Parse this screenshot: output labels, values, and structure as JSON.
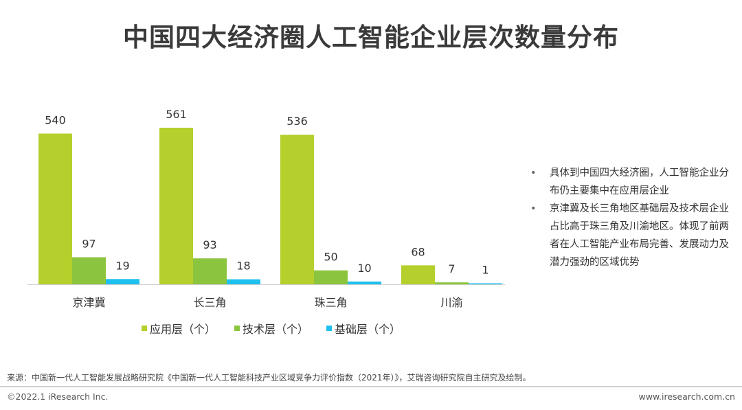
{
  "title": "中国四大经济圈人工智能企业层次数量分布",
  "chart_data": {
    "type": "bar",
    "categories": [
      "京津冀",
      "长三角",
      "珠三角",
      "川渝"
    ],
    "series": [
      {
        "name": "应用层（个）",
        "values": [
          540,
          561,
          536,
          68
        ],
        "color": "#b5cf2c"
      },
      {
        "name": "技术层（个）",
        "values": [
          97,
          93,
          50,
          7
        ],
        "color": "#8bc53f"
      },
      {
        "name": "基础层（个）",
        "values": [
          19,
          18,
          10,
          1
        ],
        "color": "#1ec0ee"
      }
    ],
    "ylim": [
      0,
      561
    ],
    "legend_position": "bottom",
    "grid": false
  },
  "notes": [
    "具体到中国四大经济圈，人工智能企业分布仍主要集中在应用层企业",
    "京津冀及长三角地区基础层及技术层企业占比高于珠三角及川渝地区。体现了前两者在人工智能产业布局完善、发展动力及潜力强劲的区域优势"
  ],
  "bullet_symbol": "•",
  "source": "来源：中国新一代人工智能发展战略研究院《中国新一代人工智能科技产业区域竞争力评价指数（2021年）》，艾瑞咨询研究院自主研究及绘制。",
  "copyright": "©2022.1 iResearch Inc.",
  "website": "www.iresearch.com.cn"
}
